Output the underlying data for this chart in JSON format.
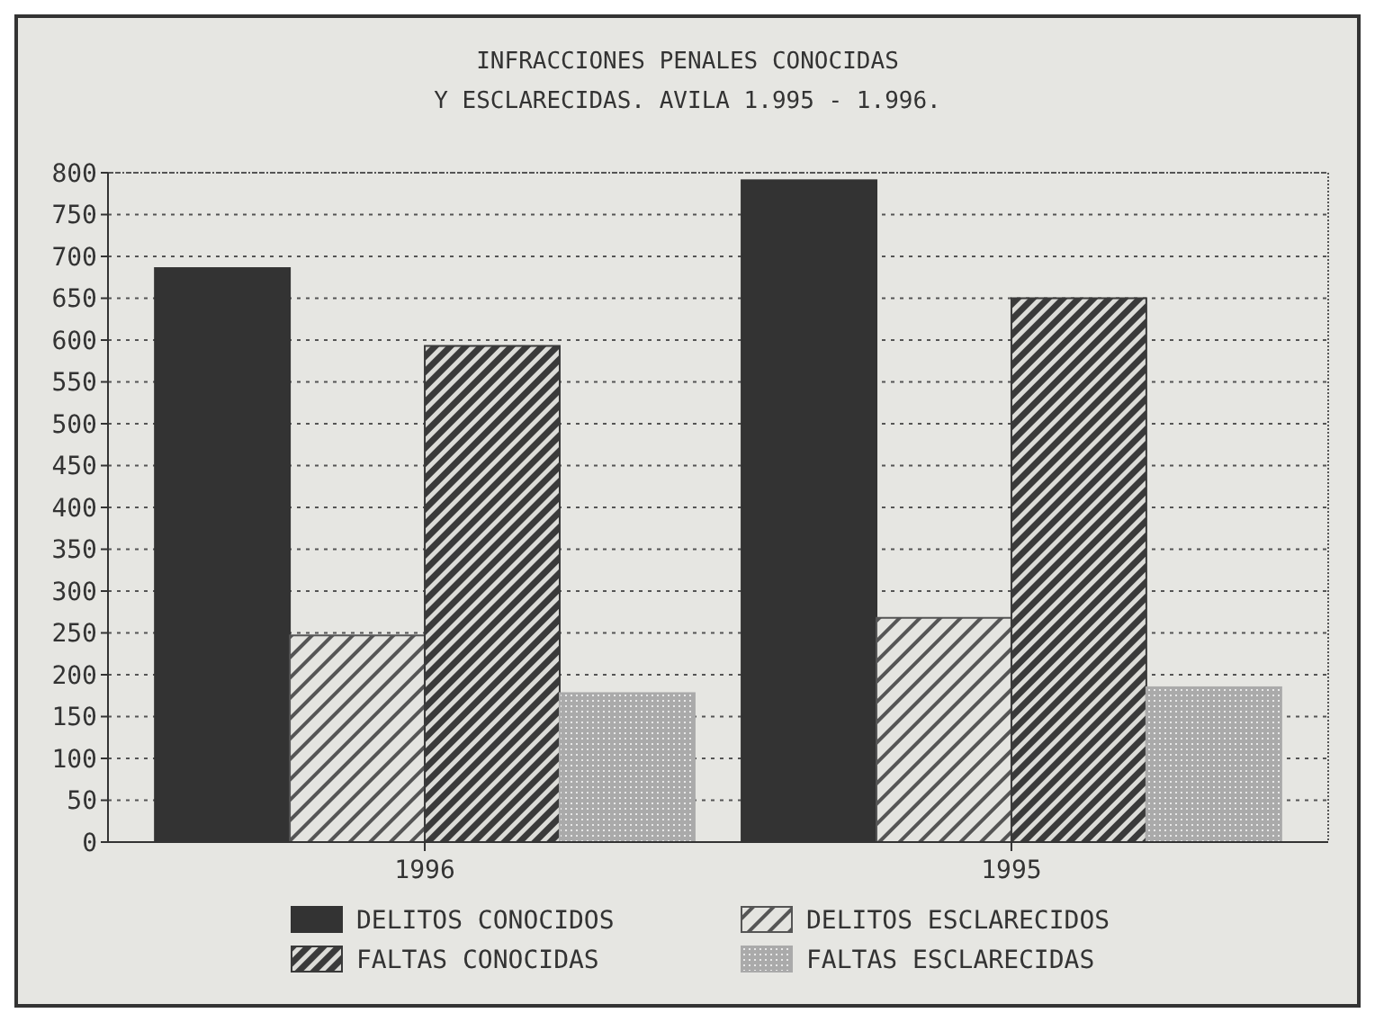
{
  "chart_data": {
    "type": "bar",
    "title": "INFRACCIONES PENALES CONOCIDAS\nY ESCLARECIDAS. AVILA 1.995 - 1.996.",
    "categories": [
      "1996",
      "1995"
    ],
    "series": [
      {
        "name": "DELITOS CONOCIDOS",
        "color": "#333333",
        "values": [
          686,
          791
        ]
      },
      {
        "name": "DELITOS ESCLARECIDOS",
        "color": "#555555",
        "values": [
          247,
          268
        ]
      },
      {
        "name": "FALTAS CONOCIDAS",
        "color": "#3a3a3a",
        "values": [
          593,
          650
        ]
      },
      {
        "name": "FALTAS ESCLARECIDAS",
        "color": "#aaaaaa",
        "values": [
          178,
          185
        ]
      }
    ],
    "ylim": [
      0,
      800
    ],
    "yticks": [
      0,
      50,
      100,
      150,
      200,
      250,
      300,
      350,
      400,
      450,
      500,
      550,
      600,
      650,
      700,
      750,
      800
    ],
    "grid": "y",
    "legend": "bottom"
  }
}
